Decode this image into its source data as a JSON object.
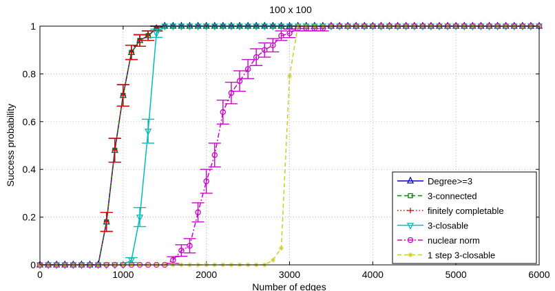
{
  "chart_data": {
    "type": "line",
    "title": "100 x 100",
    "xlabel": "Number of edges",
    "ylabel": "Success probability",
    "xlim": [
      0,
      6000
    ],
    "ylim": [
      0,
      1
    ],
    "xticks": [
      "0",
      "1000",
      "2000",
      "3000",
      "4000",
      "5000",
      "6000"
    ],
    "yticks": [
      "0",
      "0.2",
      "0.4",
      "0.6",
      "0.8",
      "1"
    ],
    "grid": true,
    "legend_position": "bottom-right",
    "series": [
      {
        "name": "Degree>=3",
        "color": "#0000cc",
        "dash": "solid",
        "marker": "triangle-up",
        "x": [
          0,
          100,
          200,
          300,
          400,
          500,
          600,
          700,
          800,
          900,
          1000,
          1100,
          1200,
          1300,
          1400,
          1500,
          1600,
          1700,
          1800,
          1900,
          2000,
          2100,
          2200,
          2300,
          2400,
          2500,
          2600,
          2700,
          2800,
          2900,
          3000,
          3100,
          3200,
          3300,
          3400,
          3500,
          3600,
          3700,
          3800,
          3900,
          4000,
          4100,
          4200,
          4300,
          4400,
          4500,
          4600,
          4700,
          4800,
          4900,
          5000,
          5100,
          5200,
          5300,
          5400,
          5500,
          5600,
          5700,
          5800,
          5900,
          6000
        ],
        "y": [
          0,
          0,
          0,
          0,
          0,
          0,
          0,
          0,
          0.18,
          0.48,
          0.71,
          0.89,
          0.94,
          0.96,
          0.99,
          1,
          1,
          1,
          1,
          1,
          1,
          1,
          1,
          1,
          1,
          1,
          1,
          1,
          1,
          1,
          1,
          1,
          1,
          1,
          1,
          1,
          1,
          1,
          1,
          1,
          1,
          1,
          1,
          1,
          1,
          1,
          1,
          1,
          1,
          1,
          1,
          1,
          1,
          1,
          1,
          1,
          1,
          1,
          1,
          1,
          1
        ],
        "err": [
          0,
          0,
          0,
          0,
          0,
          0,
          0,
          0,
          0.04,
          0.05,
          0.045,
          0.03,
          0.024,
          0.02,
          0.01,
          0,
          0,
          0,
          0,
          0,
          0,
          0,
          0,
          0,
          0,
          0,
          0,
          0,
          0,
          0,
          0,
          0,
          0,
          0,
          0,
          0,
          0,
          0,
          0,
          0,
          0,
          0,
          0,
          0,
          0,
          0,
          0,
          0,
          0,
          0,
          0,
          0,
          0,
          0,
          0,
          0,
          0,
          0,
          0,
          0,
          0
        ]
      },
      {
        "name": "3-connected",
        "color": "#008800",
        "dash": "dashed",
        "marker": "square",
        "x": [
          0,
          100,
          200,
          300,
          400,
          500,
          600,
          700,
          800,
          900,
          1000,
          1100,
          1200,
          1300,
          1400,
          1500,
          1600,
          1700,
          1800,
          1900,
          2000,
          2100,
          2200,
          2300,
          2400,
          2500,
          2600,
          2700,
          2800,
          2900,
          3000,
          3100,
          3200,
          3300,
          3400,
          3500,
          3600,
          3700,
          3800,
          3900,
          4000,
          4100,
          4200,
          4300,
          4400,
          4500,
          4600,
          4700,
          4800,
          4900,
          5000,
          5100,
          5200,
          5300,
          5400,
          5500,
          5600,
          5700,
          5800,
          5900,
          6000
        ],
        "y": [
          0,
          0,
          0,
          0,
          0,
          0,
          0,
          0,
          0.18,
          0.48,
          0.71,
          0.89,
          0.94,
          0.96,
          0.99,
          1,
          1,
          1,
          1,
          1,
          1,
          1,
          1,
          1,
          1,
          1,
          1,
          1,
          1,
          1,
          1,
          1,
          1,
          1,
          1,
          1,
          1,
          1,
          1,
          1,
          1,
          1,
          1,
          1,
          1,
          1,
          1,
          1,
          1,
          1,
          1,
          1,
          1,
          1,
          1,
          1,
          1,
          1,
          1,
          1,
          1
        ],
        "err": [
          0,
          0,
          0,
          0,
          0,
          0,
          0,
          0,
          0.04,
          0.05,
          0.045,
          0.03,
          0.024,
          0.02,
          0.01,
          0,
          0,
          0,
          0,
          0,
          0,
          0,
          0,
          0,
          0,
          0,
          0,
          0,
          0,
          0,
          0,
          0,
          0,
          0,
          0,
          0,
          0,
          0,
          0,
          0,
          0,
          0,
          0,
          0,
          0,
          0,
          0,
          0,
          0,
          0,
          0,
          0,
          0,
          0,
          0,
          0,
          0,
          0,
          0,
          0,
          0
        ]
      },
      {
        "name": "finitely completable",
        "color": "#dd0000",
        "dash": "dotted",
        "marker": "plus",
        "x": [
          0,
          100,
          200,
          300,
          400,
          500,
          600,
          700,
          800,
          900,
          1000,
          1100,
          1200,
          1300,
          1400,
          1500,
          1600,
          1700,
          1800,
          1900,
          2000,
          2100,
          2200,
          2300,
          2400,
          2500,
          2600,
          2700,
          2800,
          2900,
          3000,
          3100,
          3200,
          3300,
          3400,
          3500,
          3600,
          3700,
          3800,
          3900,
          4000,
          4100,
          4200,
          4300,
          4400,
          4500,
          4600,
          4700,
          4800,
          4900,
          5000,
          5100,
          5200,
          5300,
          5400,
          5500,
          5600,
          5700,
          5800,
          5900,
          6000
        ],
        "y": [
          0,
          0,
          0,
          0,
          0,
          0,
          0,
          0,
          0.18,
          0.48,
          0.71,
          0.89,
          0.94,
          0.96,
          0.99,
          1,
          1,
          1,
          1,
          1,
          1,
          1,
          1,
          1,
          1,
          1,
          1,
          1,
          1,
          1,
          1,
          1,
          1,
          1,
          1,
          1,
          1,
          1,
          1,
          1,
          1,
          1,
          1,
          1,
          1,
          1,
          1,
          1,
          1,
          1,
          1,
          1,
          1,
          1,
          1,
          1,
          1,
          1,
          1,
          1,
          1
        ],
        "err": [
          0,
          0,
          0,
          0,
          0,
          0,
          0,
          0,
          0.04,
          0.05,
          0.045,
          0.03,
          0.024,
          0.02,
          0.01,
          0,
          0,
          0,
          0,
          0,
          0,
          0,
          0,
          0,
          0,
          0,
          0,
          0,
          0,
          0,
          0,
          0,
          0,
          0,
          0,
          0,
          0,
          0,
          0,
          0,
          0,
          0,
          0,
          0,
          0,
          0,
          0,
          0,
          0,
          0,
          0,
          0,
          0,
          0,
          0,
          0,
          0,
          0,
          0,
          0,
          0
        ]
      },
      {
        "name": "3-closable",
        "color": "#00bbbb",
        "dash": "solid",
        "marker": "triangle-down",
        "x": [
          0,
          100,
          200,
          300,
          400,
          500,
          600,
          700,
          800,
          900,
          1000,
          1100,
          1200,
          1300,
          1400,
          1500,
          1600,
          1700,
          1800,
          1900,
          2000,
          2100,
          2200,
          2300,
          2400,
          2500,
          2600,
          2700,
          2800,
          2900,
          3000,
          3100,
          3200,
          3300,
          3400,
          3500,
          3600,
          3700,
          3800,
          3900,
          4000,
          4100,
          4200,
          4300,
          4400,
          4500,
          4600,
          4700,
          4800,
          4900,
          5000,
          5100,
          5200,
          5300,
          5400,
          5500,
          5600,
          5700,
          5800,
          5900,
          6000
        ],
        "y": [
          0,
          0,
          0,
          0,
          0,
          0,
          0,
          0,
          0,
          0,
          0,
          0.02,
          0.2,
          0.56,
          0.97,
          1,
          1,
          1,
          1,
          1,
          1,
          1,
          1,
          1,
          1,
          1,
          1,
          1,
          1,
          1,
          1,
          1,
          1,
          1,
          1,
          1,
          1,
          1,
          1,
          1,
          1,
          1,
          1,
          1,
          1,
          1,
          1,
          1,
          1,
          1,
          1,
          1,
          1,
          1,
          1,
          1,
          1,
          1,
          1,
          1,
          1
        ],
        "err": [
          0,
          0,
          0,
          0,
          0,
          0,
          0,
          0,
          0,
          0,
          0,
          0.01,
          0.04,
          0.05,
          0.017,
          0,
          0,
          0,
          0,
          0,
          0,
          0,
          0,
          0,
          0,
          0,
          0,
          0,
          0,
          0,
          0,
          0,
          0,
          0,
          0,
          0,
          0,
          0,
          0,
          0,
          0,
          0,
          0,
          0,
          0,
          0,
          0,
          0,
          0,
          0,
          0,
          0,
          0,
          0,
          0,
          0,
          0,
          0,
          0,
          0,
          0
        ]
      },
      {
        "name": "nuclear norm",
        "color": "#cc00cc",
        "dash": "dashdot",
        "marker": "circle",
        "x": [
          0,
          100,
          200,
          300,
          400,
          500,
          600,
          700,
          800,
          900,
          1000,
          1100,
          1200,
          1300,
          1400,
          1500,
          1600,
          1700,
          1800,
          1900,
          2000,
          2100,
          2200,
          2300,
          2400,
          2500,
          2600,
          2700,
          2800,
          2900,
          3000,
          3100,
          3200,
          3300,
          3400,
          3500,
          3600,
          3700,
          3800,
          3900,
          4000,
          4100,
          4200,
          4300,
          4400,
          4500,
          4600,
          4700,
          4800,
          4900,
          5000,
          5100,
          5200,
          5300,
          5400,
          5500,
          5600,
          5700,
          5800,
          5900,
          6000
        ],
        "y": [
          0,
          0,
          0,
          0,
          0,
          0,
          0,
          0,
          0,
          0,
          0,
          0,
          0,
          0,
          0,
          0,
          0.02,
          0.06,
          0.08,
          0.22,
          0.35,
          0.46,
          0.64,
          0.72,
          0.77,
          0.82,
          0.87,
          0.9,
          0.92,
          0.96,
          0.97,
          0.99,
          0.99,
          0.99,
          0.99,
          1,
          1,
          1,
          1,
          1,
          1,
          1,
          1,
          1,
          1,
          1,
          1,
          1,
          1,
          1,
          1,
          1,
          1,
          1,
          1,
          1,
          1,
          1,
          1,
          1,
          1
        ],
        "err": [
          0,
          0,
          0,
          0,
          0,
          0,
          0,
          0,
          0,
          0,
          0,
          0,
          0,
          0,
          0,
          0,
          0.014,
          0.024,
          0.03,
          0.04,
          0.05,
          0.05,
          0.05,
          0.045,
          0.043,
          0.04,
          0.035,
          0.03,
          0.028,
          0.02,
          0.018,
          0.01,
          0.01,
          0.01,
          0.01,
          0,
          0,
          0,
          0,
          0,
          0,
          0,
          0,
          0,
          0,
          0,
          0,
          0,
          0,
          0,
          0,
          0,
          0,
          0,
          0,
          0,
          0,
          0,
          0,
          0,
          0
        ]
      },
      {
        "name": "1 step 3-closable",
        "color": "#cccc22",
        "dash": "dashed",
        "marker": "asterisk",
        "x": [
          0,
          100,
          200,
          300,
          400,
          500,
          600,
          700,
          800,
          900,
          1000,
          1100,
          1200,
          1300,
          1400,
          1500,
          1600,
          1700,
          1800,
          1900,
          2000,
          2100,
          2200,
          2300,
          2400,
          2500,
          2600,
          2700,
          2800,
          2900,
          3000,
          3100,
          3200,
          3300,
          3400,
          3500,
          3600,
          3700,
          3800,
          3900,
          4000,
          4100,
          4200,
          4300,
          4400,
          4500,
          4600,
          4700,
          4800,
          4900,
          5000,
          5100,
          5200,
          5300,
          5400,
          5500,
          5600,
          5700,
          5800,
          5900,
          6000
        ],
        "y": [
          0,
          0,
          0,
          0,
          0,
          0,
          0,
          0,
          0,
          0,
          0,
          0,
          0,
          0,
          0,
          0,
          0,
          0,
          0,
          0,
          0,
          0,
          0,
          0,
          0,
          0,
          0,
          0,
          0.02,
          0.07,
          0.79,
          1,
          1,
          1,
          1,
          1,
          1,
          1,
          1,
          1,
          1,
          1,
          1,
          1,
          1,
          1,
          1,
          1,
          1,
          1,
          1,
          1,
          1,
          1,
          1,
          1,
          1,
          1,
          1,
          1,
          1
        ],
        "err": [
          0,
          0,
          0,
          0,
          0,
          0,
          0,
          0,
          0,
          0,
          0,
          0,
          0,
          0,
          0,
          0,
          0,
          0,
          0,
          0,
          0,
          0,
          0,
          0,
          0,
          0,
          0,
          0,
          0,
          0,
          0,
          0,
          0,
          0,
          0,
          0,
          0,
          0,
          0,
          0,
          0,
          0,
          0,
          0,
          0,
          0,
          0,
          0,
          0,
          0,
          0,
          0,
          0,
          0,
          0,
          0,
          0,
          0,
          0,
          0,
          0
        ]
      }
    ]
  }
}
